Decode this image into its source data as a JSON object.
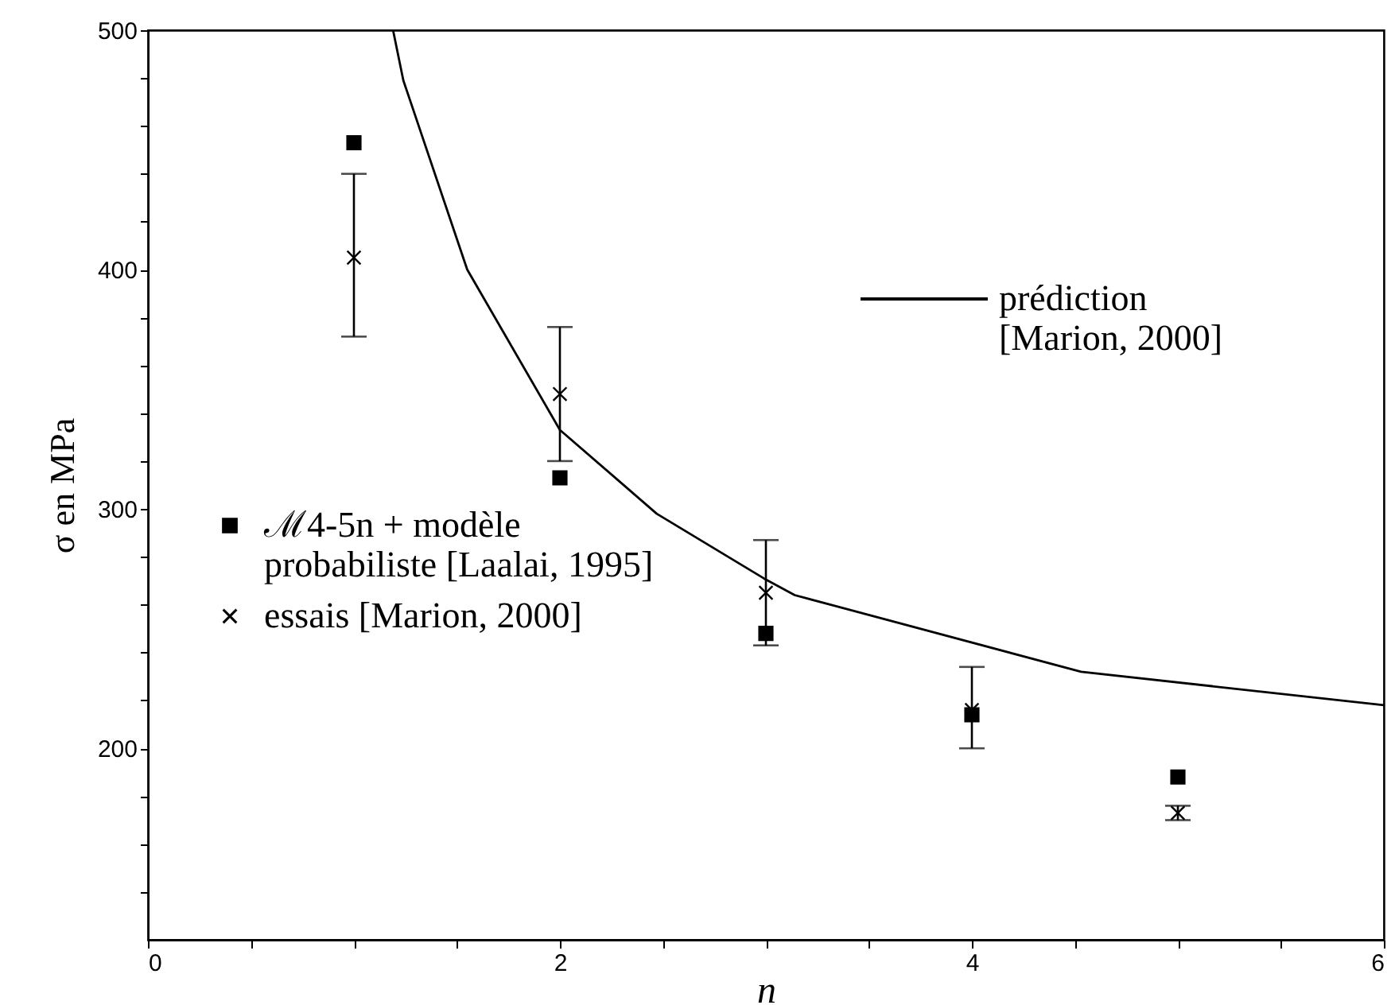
{
  "chart_data": {
    "type": "scatter",
    "xlabel": "n",
    "ylabel": "σ en MPa",
    "xlim": [
      0,
      6
    ],
    "ylim": [
      120,
      500
    ],
    "xticks": [
      0,
      {
        "value": 0.5,
        "label": null
      },
      {
        "value": 1,
        "label": null
      },
      {
        "value": 1.5,
        "label": null
      },
      2,
      {
        "value": 2.5,
        "label": null
      },
      {
        "value": 3,
        "label": null
      },
      {
        "value": 3.5,
        "label": null
      },
      4,
      {
        "value": 4.5,
        "label": null
      },
      {
        "value": 5,
        "label": null
      },
      {
        "value": 5.5,
        "label": null
      },
      6
    ],
    "yticks": [
      {
        "value": 140,
        "label": null
      },
      {
        "value": 160,
        "label": null
      },
      {
        "value": 180,
        "label": null
      },
      200,
      {
        "value": 220,
        "label": null
      },
      {
        "value": 240,
        "label": null
      },
      {
        "value": 260,
        "label": null
      },
      {
        "value": 280,
        "label": null
      },
      300,
      {
        "value": 320,
        "label": null
      },
      {
        "value": 340,
        "label": null
      },
      {
        "value": 360,
        "label": null
      },
      {
        "value": 380,
        "label": null
      },
      400,
      {
        "value": 420,
        "label": null
      },
      {
        "value": 440,
        "label": null
      },
      {
        "value": 460,
        "label": null
      },
      {
        "value": 480,
        "label": null
      },
      500
    ],
    "grid": false,
    "legend": "left",
    "series": [
      {
        "name": "prédiction [Marion, 2000]",
        "type": "line",
        "color": "#000000",
        "marker": "none",
        "line_style": "solid",
        "x": [
          1.19,
          1.24,
          1.55,
          2.0,
          2.47,
          2.99,
          3.14,
          4.53,
          6.0
        ],
        "values": [
          500,
          479,
          400,
          333,
          298,
          271,
          264,
          232,
          218
        ]
      },
      {
        "name": "ℳ4-5n + modèle probabiliste [Laalai, 1995]",
        "type": "scatter",
        "color": "#000000",
        "marker": "square",
        "x": [
          1,
          2,
          3,
          4,
          5
        ],
        "values": [
          453,
          313,
          248,
          214,
          188
        ]
      },
      {
        "name": "essais [Marion, 2000]",
        "type": "scatter",
        "color": "#000000",
        "marker": "cross",
        "x": [
          1,
          2,
          3,
          4,
          5
        ],
        "values": [
          405,
          348,
          265,
          216,
          173
        ],
        "errors": [
          [
            372,
            440
          ],
          [
            320,
            376
          ],
          [
            243,
            287
          ],
          [
            200,
            234
          ],
          [
            170,
            176
          ]
        ]
      }
    ]
  }
}
